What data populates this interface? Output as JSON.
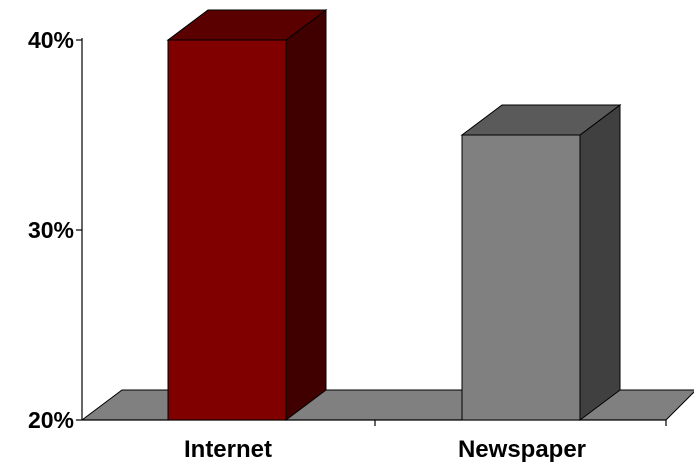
{
  "chart_data": {
    "type": "bar",
    "style": "3d",
    "categories": [
      "Internet",
      "Newspaper"
    ],
    "values": [
      40,
      35
    ],
    "value_unit": "%",
    "ylim": [
      20,
      40
    ],
    "yticks": [
      20,
      30,
      40
    ],
    "ytick_labels": [
      "20%",
      "30%",
      "40%"
    ],
    "title": "",
    "xlabel": "",
    "ylabel": "",
    "grid": false,
    "legend": "none",
    "colors": {
      "bars": [
        "#800000",
        "#808080"
      ],
      "floor": "#808080"
    }
  }
}
